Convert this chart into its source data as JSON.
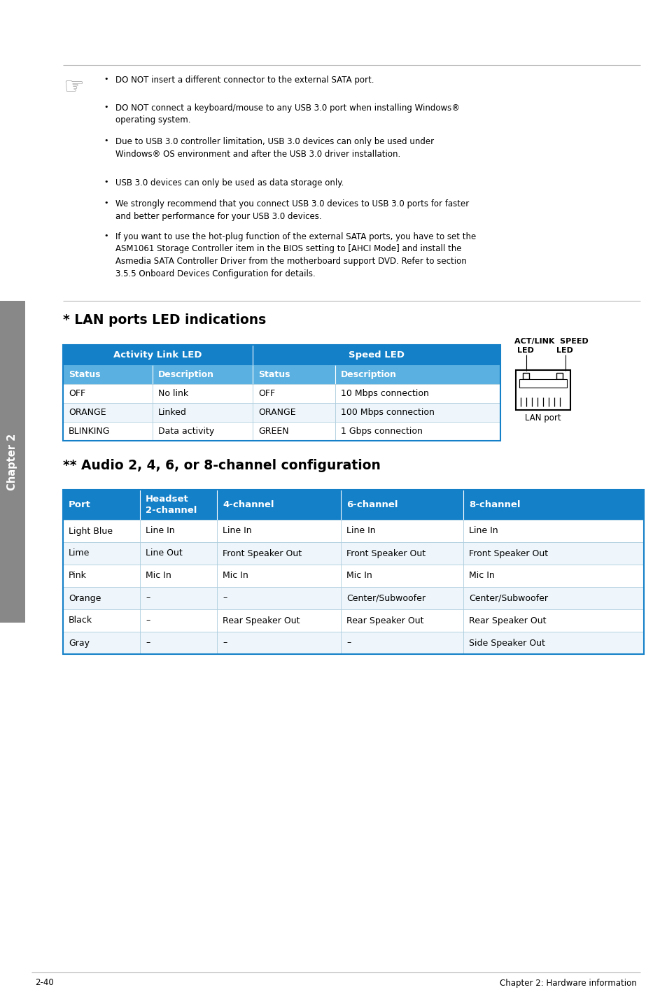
{
  "page_bg": "#ffffff",
  "chapter_sidebar_bg": "#888888",
  "chapter_text": "Chapter 2",
  "table_header_bg": "#1480c8",
  "table_subheader_bg": "#5ab0e0",
  "table_border_color": "#1480c8",
  "table_inner_border": "#aaccdd",
  "lan_col_headers": [
    "Activity Link LED",
    "Speed LED"
  ],
  "lan_subheaders": [
    "Status",
    "Description",
    "Status",
    "Description"
  ],
  "lan_rows": [
    [
      "OFF",
      "No link",
      "OFF",
      "10 Mbps connection"
    ],
    [
      "ORANGE",
      "Linked",
      "ORANGE",
      "100 Mbps connection"
    ],
    [
      "BLINKING",
      "Data activity",
      "GREEN",
      "1 Gbps connection"
    ]
  ],
  "lan_title": "* LAN ports LED indications",
  "audio_title": "** Audio 2, 4, 6, or 8-channel configuration",
  "audio_headers": [
    "Port",
    "Headset\n2-channel",
    "4-channel",
    "6-channel",
    "8-channel"
  ],
  "audio_rows": [
    [
      "Light Blue",
      "Line In",
      "Line In",
      "Line In",
      "Line In"
    ],
    [
      "Lime",
      "Line Out",
      "Front Speaker Out",
      "Front Speaker Out",
      "Front Speaker Out"
    ],
    [
      "Pink",
      "Mic In",
      "Mic In",
      "Mic In",
      "Mic In"
    ],
    [
      "Orange",
      "–",
      "–",
      "Center/Subwoofer",
      "Center/Subwoofer"
    ],
    [
      "Black",
      "–",
      "Rear Speaker Out",
      "Rear Speaker Out",
      "Rear Speaker Out"
    ],
    [
      "Gray",
      "–",
      "–",
      "–",
      "Side Speaker Out"
    ]
  ],
  "bullet_points": [
    "DO NOT insert a different connector to the external SATA port.",
    "DO NOT connect a keyboard/mouse to any USB 3.0 port when installing Windows®\noperating system.",
    "Due to USB 3.0 controller limitation, USB 3.0 devices can only be used under\nWindows® OS environment and after the USB 3.0 driver installation.",
    "USB 3.0 devices can only be used as data storage only.",
    "We strongly recommend that you connect USB 3.0 devices to USB 3.0 ports for faster\nand better performance for your USB 3.0 devices.",
    "If you want to use the hot-plug function of the external SATA ports, you have to set the\nASM1061 Storage Controller item in the BIOS setting to [AHCI Mode] and install the\nAsmedia SATA Controller Driver from the motherboard support DVD. Refer to section\n3.5.5 Onboard Devices Configuration for details."
  ],
  "footer_left": "2-40",
  "footer_right": "Chapter 2: Hardware information"
}
